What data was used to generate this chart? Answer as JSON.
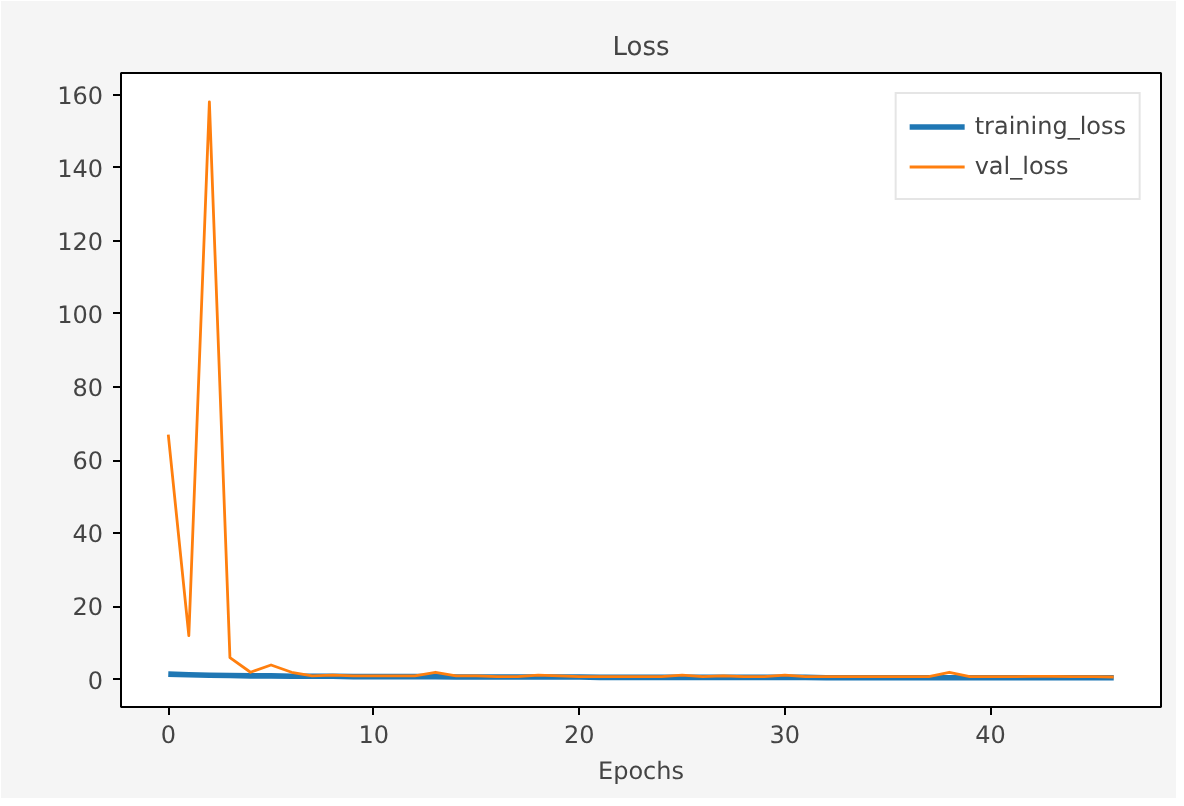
{
  "chart_data": {
    "type": "line",
    "title": "Loss",
    "xlabel": "Epochs",
    "x": [
      0,
      1,
      2,
      3,
      4,
      5,
      6,
      7,
      8,
      9,
      10,
      11,
      12,
      13,
      14,
      15,
      16,
      17,
      18,
      19,
      20,
      21,
      22,
      23,
      24,
      25,
      26,
      27,
      28,
      29,
      30,
      31,
      32,
      33,
      34,
      35,
      36,
      37,
      38,
      39,
      40,
      41,
      42,
      43,
      44,
      45,
      46
    ],
    "series": [
      {
        "name": "training_loss",
        "color": "#1f77b4",
        "values": [
          1.5,
          1.3,
          1.2,
          1.1,
          1.0,
          1.0,
          0.9,
          0.9,
          0.9,
          0.8,
          0.8,
          0.8,
          0.8,
          0.8,
          0.7,
          0.7,
          0.7,
          0.7,
          0.7,
          0.7,
          0.7,
          0.6,
          0.6,
          0.6,
          0.6,
          0.6,
          0.6,
          0.6,
          0.6,
          0.6,
          0.6,
          0.6,
          0.5,
          0.5,
          0.5,
          0.5,
          0.5,
          0.5,
          0.5,
          0.5,
          0.5,
          0.5,
          0.5,
          0.5,
          0.5,
          0.5,
          0.5
        ]
      },
      {
        "name": "val_loss",
        "color": "#ff7f0e",
        "values": [
          67,
          12,
          158,
          6,
          2,
          4,
          2,
          1,
          1.2,
          1,
          1,
          1,
          1,
          2,
          1,
          1,
          0.8,
          0.8,
          1.2,
          1,
          0.8,
          0.8,
          0.8,
          0.8,
          0.8,
          1.2,
          0.8,
          1,
          0.8,
          0.8,
          1.2,
          0.8,
          0.8,
          0.8,
          0.8,
          0.8,
          0.8,
          0.8,
          2,
          0.8,
          0.8,
          0.8,
          0.9,
          0.9,
          0.8,
          0.8,
          0.7
        ]
      }
    ],
    "xlim": [
      -2.3,
      48.3
    ],
    "ylim": [
      -7.5,
      165.9
    ],
    "xticks": [
      0,
      10,
      20,
      30,
      40
    ],
    "yticks": [
      0,
      20,
      40,
      60,
      80,
      100,
      120,
      140,
      160
    ],
    "grid": false,
    "legend": "top right",
    "line_style": "solid",
    "marker": "none"
  }
}
